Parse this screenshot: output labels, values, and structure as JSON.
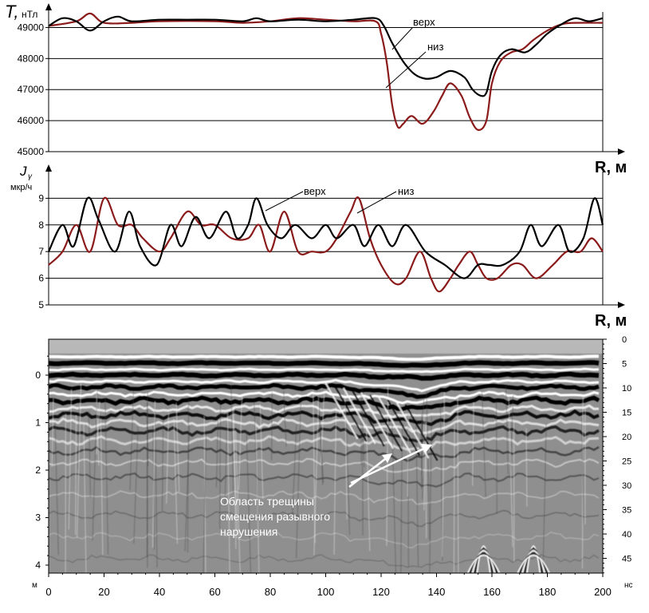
{
  "chart_data": [
    {
      "type": "line",
      "ylabel": "T,",
      "yunit": "нТл",
      "xlabel": "R, м",
      "xlim": [
        0,
        200
      ],
      "ylim": [
        45000,
        49500
      ],
      "yticks": [
        45000,
        46000,
        47000,
        48000,
        49000
      ],
      "grid": true,
      "series": [
        {
          "name": "верх",
          "color": "#000000",
          "points": [
            [
              0,
              49050
            ],
            [
              5,
              49300
            ],
            [
              10,
              49200
            ],
            [
              15,
              48900
            ],
            [
              20,
              49200
            ],
            [
              25,
              49350
            ],
            [
              30,
              49200
            ],
            [
              40,
              49250
            ],
            [
              50,
              49250
            ],
            [
              60,
              49250
            ],
            [
              70,
              49200
            ],
            [
              75,
              49300
            ],
            [
              80,
              49200
            ],
            [
              90,
              49250
            ],
            [
              100,
              49200
            ],
            [
              110,
              49250
            ],
            [
              118,
              49300
            ],
            [
              121,
              49050
            ],
            [
              124,
              48500
            ],
            [
              128,
              47900
            ],
            [
              132,
              47500
            ],
            [
              136,
              47350
            ],
            [
              140,
              47400
            ],
            [
              145,
              47600
            ],
            [
              150,
              47400
            ],
            [
              153,
              47000
            ],
            [
              156,
              46800
            ],
            [
              158,
              46900
            ],
            [
              160,
              47600
            ],
            [
              163,
              48100
            ],
            [
              167,
              48300
            ],
            [
              172,
              48200
            ],
            [
              176,
              48450
            ],
            [
              180,
              48800
            ],
            [
              185,
              49100
            ],
            [
              190,
              49300
            ],
            [
              195,
              49200
            ],
            [
              200,
              49300
            ]
          ]
        },
        {
          "name": "низ",
          "color": "#8b1a1a",
          "points": [
            [
              0,
              49050
            ],
            [
              10,
              49200
            ],
            [
              15,
              49450
            ],
            [
              20,
              49150
            ],
            [
              30,
              49150
            ],
            [
              40,
              49200
            ],
            [
              60,
              49200
            ],
            [
              70,
              49150
            ],
            [
              80,
              49200
            ],
            [
              90,
              49300
            ],
            [
              100,
              49250
            ],
            [
              110,
              49200
            ],
            [
              118,
              49200
            ],
            [
              120,
              48800
            ],
            [
              122,
              47900
            ],
            [
              124,
              46500
            ],
            [
              126,
              45800
            ],
            [
              128,
              45900
            ],
            [
              131,
              46150
            ],
            [
              135,
              45900
            ],
            [
              139,
              46300
            ],
            [
              142,
              46800
            ],
            [
              145,
              47200
            ],
            [
              149,
              46800
            ],
            [
              152,
              46100
            ],
            [
              155,
              45700
            ],
            [
              158,
              46000
            ],
            [
              160,
              47200
            ],
            [
              163,
              47900
            ],
            [
              167,
              48200
            ],
            [
              171,
              48300
            ],
            [
              175,
              48600
            ],
            [
              180,
              48900
            ],
            [
              185,
              49100
            ],
            [
              190,
              49150
            ],
            [
              200,
              49150
            ]
          ]
        }
      ]
    },
    {
      "type": "line",
      "ylabel": "J",
      "ylabel_sub": "γ",
      "yunit": "мкр/ч",
      "xlabel": "R, м",
      "xlim": [
        0,
        200
      ],
      "ylim": [
        5,
        10
      ],
      "yticks": [
        5,
        6,
        7,
        8,
        9
      ],
      "grid": true,
      "series": [
        {
          "name": "верх",
          "color": "#000000",
          "points": [
            [
              0,
              7
            ],
            [
              5,
              8
            ],
            [
              9,
              7.2
            ],
            [
              14,
              9
            ],
            [
              18,
              8.2
            ],
            [
              24,
              7
            ],
            [
              29,
              8.5
            ],
            [
              33,
              7.2
            ],
            [
              39,
              6.5
            ],
            [
              44,
              8
            ],
            [
              48,
              7.2
            ],
            [
              53,
              8.3
            ],
            [
              58,
              7.5
            ],
            [
              64,
              8.5
            ],
            [
              68,
              7.5
            ],
            [
              72,
              8
            ],
            [
              75,
              9
            ],
            [
              79,
              8
            ],
            [
              84,
              7.5
            ],
            [
              89,
              8
            ],
            [
              95,
              7.5
            ],
            [
              100,
              8
            ],
            [
              104,
              7.5
            ],
            [
              110,
              8
            ],
            [
              114,
              7.2
            ],
            [
              119,
              8
            ],
            [
              124,
              7.2
            ],
            [
              129,
              8
            ],
            [
              136,
              7
            ],
            [
              143,
              6.5
            ],
            [
              150,
              6
            ],
            [
              155,
              6.5
            ],
            [
              159,
              6.5
            ],
            [
              164,
              6.5
            ],
            [
              170,
              7
            ],
            [
              174,
              8
            ],
            [
              178,
              7.2
            ],
            [
              184,
              8
            ],
            [
              188,
              7
            ],
            [
              193,
              7.5
            ],
            [
              197,
              9
            ],
            [
              200,
              8
            ]
          ]
        },
        {
          "name": "низ",
          "color": "#8b1a1a",
          "points": [
            [
              0,
              6.5
            ],
            [
              5,
              7
            ],
            [
              10,
              8
            ],
            [
              15,
              7
            ],
            [
              20,
              9
            ],
            [
              25,
              8
            ],
            [
              30,
              8
            ],
            [
              34,
              7.5
            ],
            [
              40,
              7
            ],
            [
              44,
              7.5
            ],
            [
              50,
              8.5
            ],
            [
              55,
              8
            ],
            [
              60,
              8
            ],
            [
              66,
              7.5
            ],
            [
              72,
              7.5
            ],
            [
              76,
              8
            ],
            [
              80,
              7
            ],
            [
              85,
              8.5
            ],
            [
              90,
              7
            ],
            [
              95,
              7
            ],
            [
              100,
              7
            ],
            [
              104,
              7.5
            ],
            [
              109,
              8.5
            ],
            [
              112,
              9
            ],
            [
              116,
              7.5
            ],
            [
              120,
              6.5
            ],
            [
              125,
              5.8
            ],
            [
              129,
              6
            ],
            [
              134,
              7
            ],
            [
              138,
              6
            ],
            [
              141,
              5.5
            ],
            [
              145,
              6
            ],
            [
              148,
              6.5
            ],
            [
              152,
              7
            ],
            [
              155,
              6.5
            ],
            [
              158,
              6
            ],
            [
              162,
              6
            ],
            [
              167,
              6.5
            ],
            [
              171,
              6.5
            ],
            [
              176,
              6
            ],
            [
              182,
              6.5
            ],
            [
              187,
              7
            ],
            [
              192,
              7
            ],
            [
              196,
              7.5
            ],
            [
              200,
              7
            ]
          ]
        }
      ]
    },
    {
      "type": "heatmap",
      "subtype": "radargram",
      "xlabel_unit": "м",
      "x_ticks": [
        0,
        20,
        40,
        60,
        80,
        100,
        120,
        140,
        160,
        180,
        200
      ],
      "xlim": [
        0,
        200
      ],
      "left_axis_unit": "м",
      "left_ticks": [
        0,
        1,
        2,
        3,
        4
      ],
      "right_axis_unit": "нс",
      "right_ticks": [
        0,
        5,
        10,
        15,
        20,
        25,
        30,
        35,
        40,
        45
      ],
      "annotation": {
        "lines": [
          "Область трещины",
          "смещения разывного",
          "нарушения"
        ],
        "arrow_targets_x": [
          125,
          139
        ],
        "color": "#ffffff"
      }
    }
  ]
}
